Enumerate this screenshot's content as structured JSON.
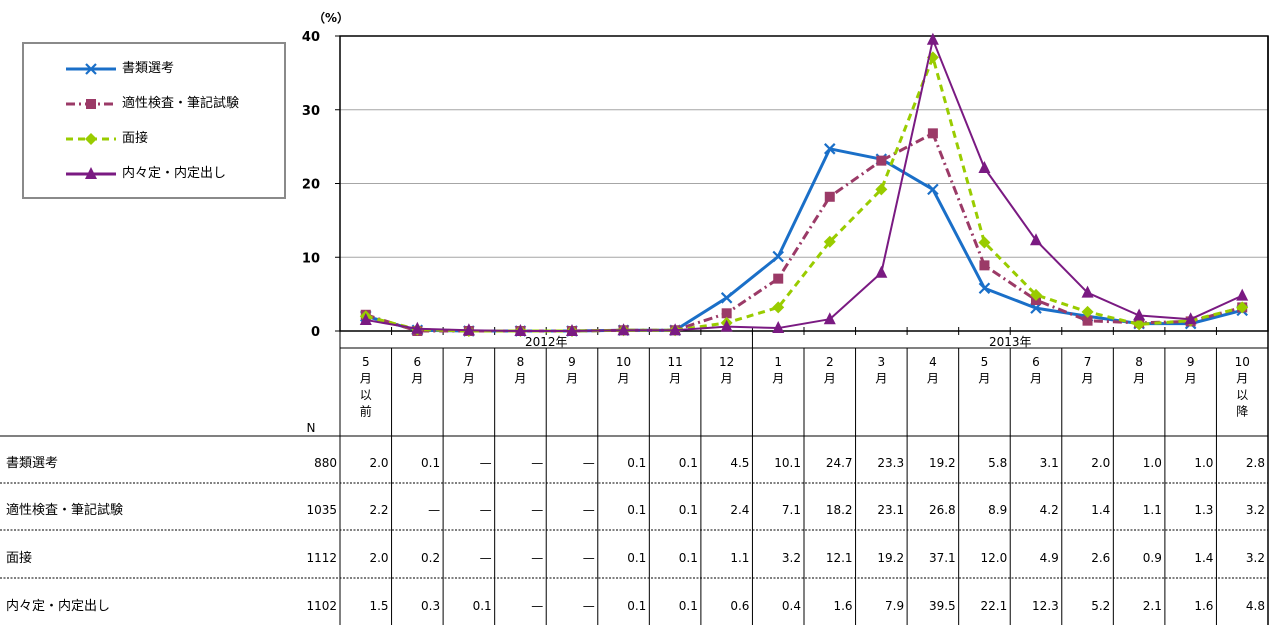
{
  "chart_data": {
    "type": "line",
    "y_unit": "（%）",
    "ylim": [
      0,
      40
    ],
    "y_ticks": [
      0,
      10,
      20,
      30,
      40
    ],
    "grid": true,
    "legend_position": "top-left",
    "year_groups": [
      {
        "label": "2012年",
        "span": 8
      },
      {
        "label": "2013年",
        "span": 10
      }
    ],
    "categories": [
      [
        "5",
        "月",
        "以",
        "前"
      ],
      [
        "6",
        "月"
      ],
      [
        "7",
        "月"
      ],
      [
        "8",
        "月"
      ],
      [
        "9",
        "月"
      ],
      [
        "10",
        "月"
      ],
      [
        "11",
        "月"
      ],
      [
        "12",
        "月"
      ],
      [
        "1",
        "月"
      ],
      [
        "2",
        "月"
      ],
      [
        "3",
        "月"
      ],
      [
        "4",
        "月"
      ],
      [
        "5",
        "月"
      ],
      [
        "6",
        "月"
      ],
      [
        "7",
        "月"
      ],
      [
        "8",
        "月"
      ],
      [
        "9",
        "月"
      ],
      [
        "10",
        "月",
        "以",
        "降"
      ]
    ],
    "n_header": "N",
    "series": [
      {
        "name": "書類選考",
        "n": "880",
        "color": "#1a6fc8",
        "marker": "x",
        "dash": "solid",
        "labels": [
          "2.0",
          "0.1",
          "—",
          "—",
          "—",
          "0.1",
          "0.1",
          "4.5",
          "10.1",
          "24.7",
          "23.3",
          "19.2",
          "5.8",
          "3.1",
          "2.0",
          "1.0",
          "1.0",
          "2.8"
        ],
        "values": [
          2.0,
          0.1,
          0,
          0,
          0,
          0.1,
          0.1,
          4.5,
          10.1,
          24.7,
          23.3,
          19.2,
          5.8,
          3.1,
          2.0,
          1.0,
          1.0,
          2.8
        ]
      },
      {
        "name": "適性検査・筆記試験",
        "n": "1035",
        "color": "#9b3a67",
        "marker": "square",
        "dash": "dashdot",
        "labels": [
          "2.2",
          "—",
          "—",
          "—",
          "—",
          "0.1",
          "0.1",
          "2.4",
          "7.1",
          "18.2",
          "23.1",
          "26.8",
          "8.9",
          "4.2",
          "1.4",
          "1.1",
          "1.3",
          "3.2"
        ],
        "values": [
          2.2,
          0,
          0,
          0,
          0,
          0.1,
          0.1,
          2.4,
          7.1,
          18.2,
          23.1,
          26.8,
          8.9,
          4.2,
          1.4,
          1.1,
          1.3,
          3.2
        ]
      },
      {
        "name": "面接",
        "n": "1112",
        "color": "#99cc00",
        "marker": "diamond",
        "dash": "dashed",
        "labels": [
          "2.0",
          "0.2",
          "—",
          "—",
          "—",
          "0.1",
          "0.1",
          "1.1",
          "3.2",
          "12.1",
          "19.2",
          "37.1",
          "12.0",
          "4.9",
          "2.6",
          "0.9",
          "1.4",
          "3.2"
        ],
        "values": [
          2.0,
          0.2,
          0,
          0,
          0,
          0.1,
          0.1,
          1.1,
          3.2,
          12.1,
          19.2,
          37.1,
          12.0,
          4.9,
          2.6,
          0.9,
          1.4,
          3.2
        ]
      },
      {
        "name": "内々定・内定出し",
        "n": "1102",
        "color": "#7a1a82",
        "marker": "triangle",
        "dash": "solid",
        "labels": [
          "1.5",
          "0.3",
          "0.1",
          "—",
          "—",
          "0.1",
          "0.1",
          "0.6",
          "0.4",
          "1.6",
          "7.9",
          "39.5",
          "22.1",
          "12.3",
          "5.2",
          "2.1",
          "1.6",
          "4.8"
        ],
        "values": [
          1.5,
          0.3,
          0.1,
          0,
          0,
          0.1,
          0.1,
          0.6,
          0.4,
          1.6,
          7.9,
          39.5,
          22.1,
          12.3,
          5.2,
          2.1,
          1.6,
          4.8
        ]
      }
    ]
  }
}
